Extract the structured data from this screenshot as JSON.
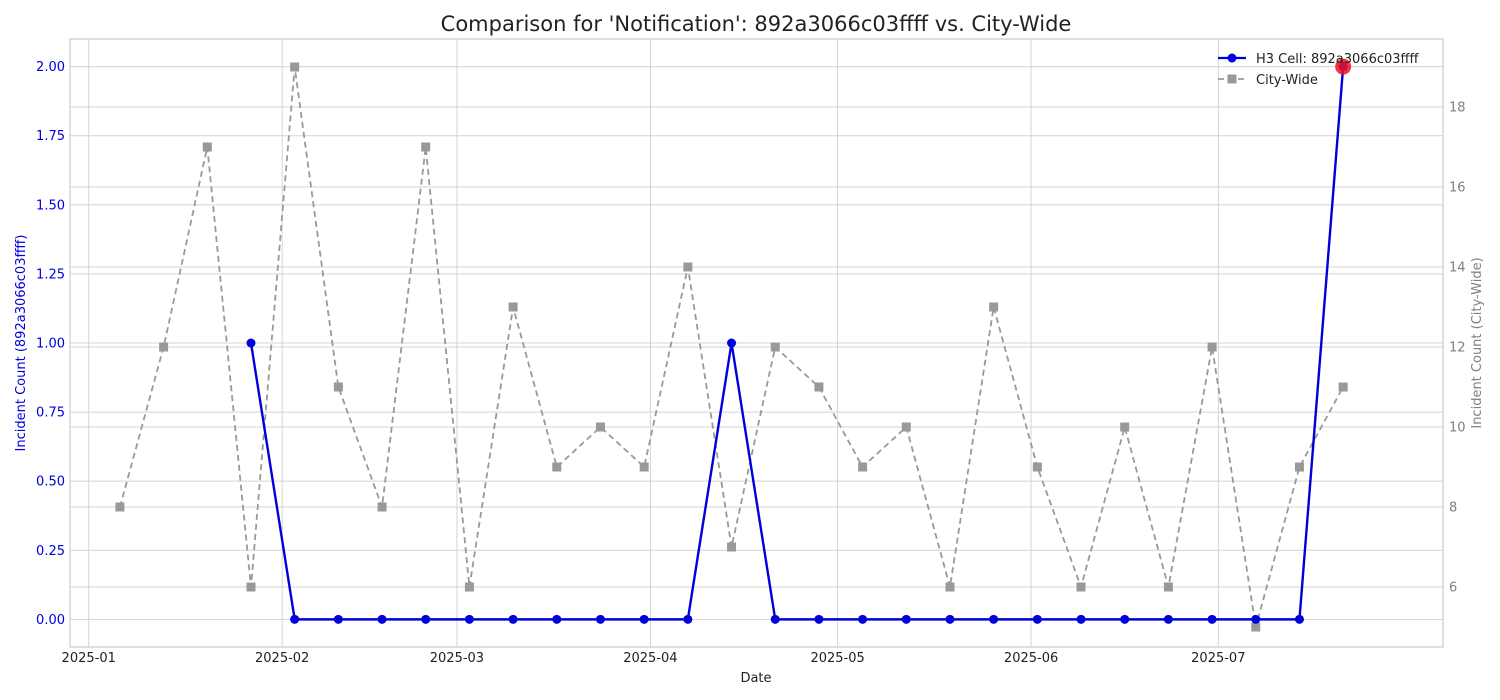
{
  "chart_data": {
    "type": "line",
    "title": "Comparison for 'Notification': 892a3066c03ffff vs. City-Wide",
    "xlabel": "Date",
    "ylabel_left": "Incident Count (892a3066c03ffff)",
    "ylabel_right": "Incident Count (City-Wide)",
    "x_ticks": [
      "2025-01",
      "2025-02",
      "2025-03",
      "2025-04",
      "2025-05",
      "2025-06",
      "2025-07"
    ],
    "y_left_ticks": [
      "0.00",
      "0.25",
      "0.50",
      "0.75",
      "1.00",
      "1.25",
      "1.50",
      "1.75",
      "2.00"
    ],
    "y_right_ticks": [
      "6",
      "8",
      "10",
      "12",
      "14",
      "16",
      "18"
    ],
    "ylim_left": [
      -0.1,
      2.1
    ],
    "ylim_right": [
      4.5,
      19.7
    ],
    "xlim": [
      "2024-12-29",
      "2025-08-06"
    ],
    "grid": true,
    "legend_position": "top-right",
    "colors": {
      "cell": "#0000dd",
      "city": "#999999",
      "highlight": "#ee1122",
      "left_axis_text": "#0000dd",
      "right_axis_text": "#808080"
    },
    "series": [
      {
        "name": "H3 Cell: 892a3066c03ffff",
        "axis": "left",
        "style": "solid",
        "marker": "circle",
        "points": [
          {
            "x": "2025-01-27",
            "y": 1
          },
          {
            "x": "2025-02-03",
            "y": 0
          },
          {
            "x": "2025-02-10",
            "y": 0
          },
          {
            "x": "2025-02-17",
            "y": 0
          },
          {
            "x": "2025-02-24",
            "y": 0
          },
          {
            "x": "2025-03-03",
            "y": 0
          },
          {
            "x": "2025-03-10",
            "y": 0
          },
          {
            "x": "2025-03-17",
            "y": 0
          },
          {
            "x": "2025-03-24",
            "y": 0
          },
          {
            "x": "2025-03-31",
            "y": 0
          },
          {
            "x": "2025-04-07",
            "y": 0
          },
          {
            "x": "2025-04-14",
            "y": 1
          },
          {
            "x": "2025-04-21",
            "y": 0
          },
          {
            "x": "2025-04-28",
            "y": 0
          },
          {
            "x": "2025-05-05",
            "y": 0
          },
          {
            "x": "2025-05-12",
            "y": 0
          },
          {
            "x": "2025-05-19",
            "y": 0
          },
          {
            "x": "2025-05-26",
            "y": 0
          },
          {
            "x": "2025-06-02",
            "y": 0
          },
          {
            "x": "2025-06-09",
            "y": 0
          },
          {
            "x": "2025-06-16",
            "y": 0
          },
          {
            "x": "2025-06-23",
            "y": 0
          },
          {
            "x": "2025-06-30",
            "y": 0
          },
          {
            "x": "2025-07-07",
            "y": 0
          },
          {
            "x": "2025-07-14",
            "y": 0
          },
          {
            "x": "2025-07-21",
            "y": 2
          }
        ]
      },
      {
        "name": "City-Wide",
        "axis": "right",
        "style": "dashed",
        "marker": "square",
        "points": [
          {
            "x": "2025-01-06",
            "y": 8
          },
          {
            "x": "2025-01-13",
            "y": 12
          },
          {
            "x": "2025-01-20",
            "y": 17
          },
          {
            "x": "2025-01-27",
            "y": 6
          },
          {
            "x": "2025-02-03",
            "y": 19
          },
          {
            "x": "2025-02-10",
            "y": 11
          },
          {
            "x": "2025-02-17",
            "y": 8
          },
          {
            "x": "2025-02-24",
            "y": 17
          },
          {
            "x": "2025-03-03",
            "y": 6
          },
          {
            "x": "2025-03-10",
            "y": 13
          },
          {
            "x": "2025-03-17",
            "y": 9
          },
          {
            "x": "2025-03-24",
            "y": 10
          },
          {
            "x": "2025-03-31",
            "y": 9
          },
          {
            "x": "2025-04-07",
            "y": 14
          },
          {
            "x": "2025-04-14",
            "y": 7
          },
          {
            "x": "2025-04-21",
            "y": 12
          },
          {
            "x": "2025-04-28",
            "y": 11
          },
          {
            "x": "2025-05-05",
            "y": 9
          },
          {
            "x": "2025-05-12",
            "y": 10
          },
          {
            "x": "2025-05-19",
            "y": 6
          },
          {
            "x": "2025-05-26",
            "y": 13
          },
          {
            "x": "2025-06-02",
            "y": 9
          },
          {
            "x": "2025-06-09",
            "y": 6
          },
          {
            "x": "2025-06-16",
            "y": 10
          },
          {
            "x": "2025-06-23",
            "y": 6
          },
          {
            "x": "2025-06-30",
            "y": 12
          },
          {
            "x": "2025-07-07",
            "y": 5
          },
          {
            "x": "2025-07-14",
            "y": 9
          },
          {
            "x": "2025-07-21",
            "y": 11
          }
        ]
      }
    ],
    "highlight_point": {
      "x": "2025-07-21",
      "y": 2,
      "axis": "left"
    }
  }
}
